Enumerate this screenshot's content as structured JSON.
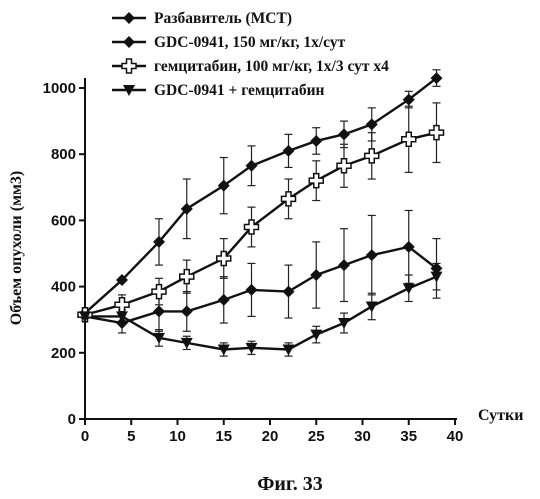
{
  "chart_data": {
    "type": "line",
    "xlabel": "Сутки",
    "ylabel": "Объем опухоли (мм3)",
    "xlim": [
      0,
      40
    ],
    "ylim": [
      0,
      1000
    ],
    "xticks": [
      0,
      5,
      10,
      15,
      20,
      25,
      30,
      35,
      40
    ],
    "yticks": [
      0,
      200,
      400,
      600,
      800,
      1000
    ],
    "caption": "Фиг. 33",
    "grid": false,
    "legend_position": "top-left",
    "series": [
      {
        "name": "Разбавитель (MCT)",
        "marker": "diamond",
        "x": [
          0,
          4,
          8,
          11,
          15,
          18,
          22,
          25,
          28,
          31,
          35,
          38
        ],
        "y": [
          320,
          420,
          535,
          635,
          705,
          765,
          810,
          840,
          860,
          890,
          965,
          1030
        ],
        "err": [
          0,
          0,
          70,
          90,
          85,
          60,
          50,
          40,
          40,
          50,
          25,
          25
        ]
      },
      {
        "name": "GDC-0941, 150 мг/кг, 1x/сут",
        "marker": "diamond",
        "x": [
          0,
          4,
          8,
          11,
          15,
          18,
          22,
          25,
          28,
          31,
          35,
          38
        ],
        "y": [
          310,
          290,
          325,
          325,
          360,
          390,
          385,
          435,
          465,
          495,
          520,
          455
        ],
        "err": [
          0,
          30,
          60,
          60,
          70,
          80,
          80,
          100,
          110,
          120,
          110,
          90
        ]
      },
      {
        "name": "гемцитабин, 100 мг/кг, 1x/3 сут x4",
        "marker": "plus",
        "x": [
          0,
          4,
          8,
          11,
          15,
          18,
          22,
          25,
          28,
          31,
          35,
          38
        ],
        "y": [
          315,
          345,
          385,
          430,
          485,
          580,
          665,
          720,
          765,
          795,
          845,
          865
        ],
        "err": [
          0,
          30,
          40,
          50,
          60,
          60,
          60,
          60,
          65,
          70,
          100,
          90
        ]
      },
      {
        "name": "GDC-0941 + гемцитабин",
        "marker": "triangle-down",
        "x": [
          0,
          4,
          8,
          11,
          15,
          18,
          22,
          25,
          28,
          31,
          35,
          38
        ],
        "y": [
          310,
          310,
          245,
          230,
          210,
          215,
          210,
          255,
          290,
          340,
          395,
          430
        ],
        "err": [
          0,
          20,
          25,
          20,
          20,
          20,
          20,
          25,
          30,
          40,
          40,
          40
        ]
      }
    ]
  }
}
